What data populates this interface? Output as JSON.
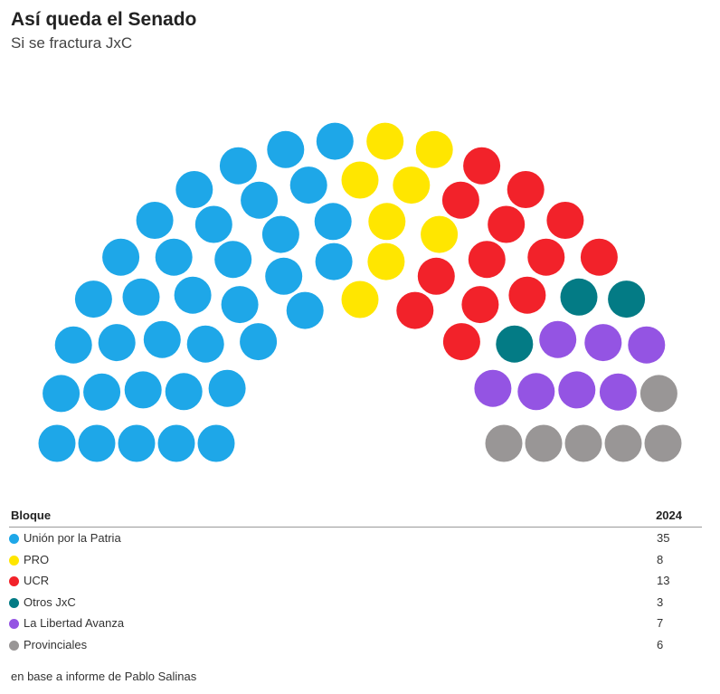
{
  "header": {
    "title": "Así queda el Senado",
    "subtitle": "Si se fractura JxC"
  },
  "table": {
    "col_bloque": "Bloque",
    "col_year": "2024"
  },
  "chart_data": {
    "type": "parliament",
    "total_seats": 72,
    "series": [
      {
        "name": "Unión por la Patria",
        "value": 35,
        "color": "#1ea7e8"
      },
      {
        "name": "PRO",
        "value": 8,
        "color": "#ffe600"
      },
      {
        "name": "UCR",
        "value": 13,
        "color": "#f2222a"
      },
      {
        "name": "Otros JxC",
        "value": 3,
        "color": "#037b85"
      },
      {
        "name": "La Libertad Avanza",
        "value": 7,
        "color": "#9454e3"
      },
      {
        "name": "Provinciales",
        "value": 6,
        "color": "#999696"
      }
    ]
  },
  "footer": {
    "source": "en base a informe de Pablo Salinas"
  }
}
